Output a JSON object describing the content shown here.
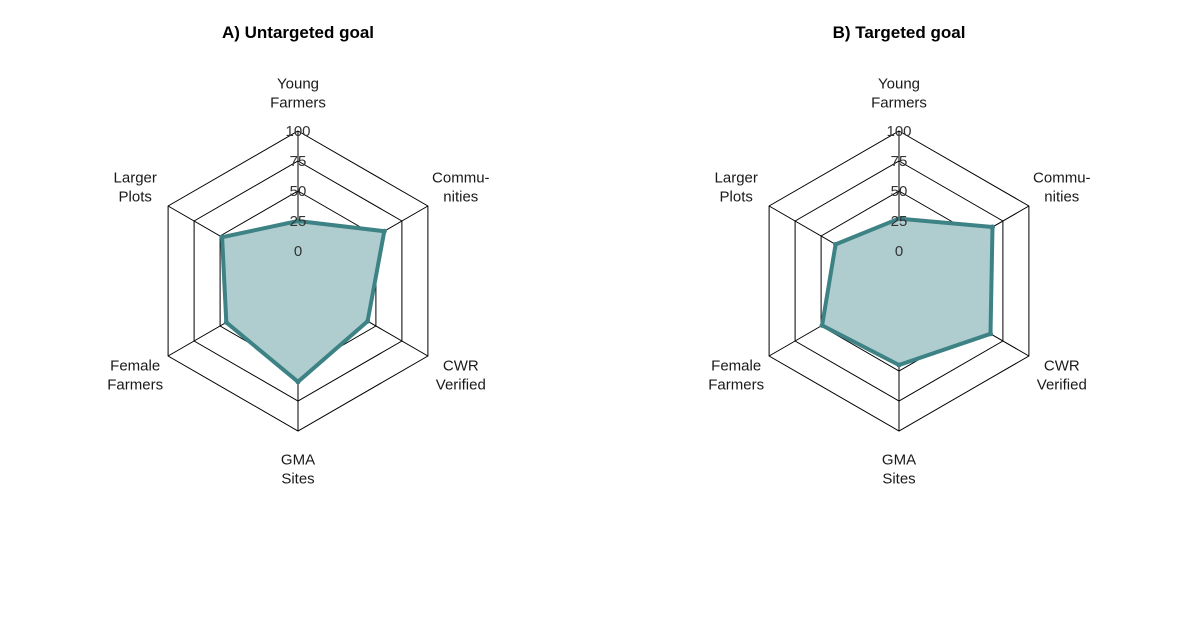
{
  "chart_data": [
    {
      "type": "radar",
      "title": "A) Untargeted goal",
      "axes": [
        {
          "label": [
            "Young",
            "Farmers"
          ]
        },
        {
          "label": [
            "Commu-",
            "nities"
          ]
        },
        {
          "label": [
            "CWR",
            "Verified"
          ]
        },
        {
          "label": [
            "GMA",
            "Sites"
          ]
        },
        {
          "label": [
            "Female",
            "Farmers"
          ]
        },
        {
          "label": [
            "Larger",
            "Plots"
          ]
        }
      ],
      "range": [
        0,
        100
      ],
      "ticks": [
        "0",
        "25",
        "50",
        "75",
        "100"
      ],
      "series": [
        {
          "values": [
            25,
            58,
            42,
            59,
            44,
            48
          ]
        }
      ]
    },
    {
      "type": "radar",
      "title": "B) Targeted goal",
      "axes": [
        {
          "label": [
            "Young",
            "Farmers"
          ]
        },
        {
          "label": [
            "Commu-",
            "nities"
          ]
        },
        {
          "label": [
            "CWR",
            "Verified"
          ]
        },
        {
          "label": [
            "GMA",
            "Sites"
          ]
        },
        {
          "label": [
            "Female",
            "Farmers"
          ]
        },
        {
          "label": [
            "Larger",
            "Plots"
          ]
        }
      ],
      "range": [
        0,
        100
      ],
      "ticks": [
        "0",
        "25",
        "50",
        "75",
        "100"
      ],
      "series": [
        {
          "values": [
            27,
            65,
            63,
            45,
            49,
            36
          ]
        }
      ]
    }
  ],
  "colors": {
    "grid": "#000000",
    "series_line": "#3d8285",
    "series_fill": "#afcdce"
  }
}
